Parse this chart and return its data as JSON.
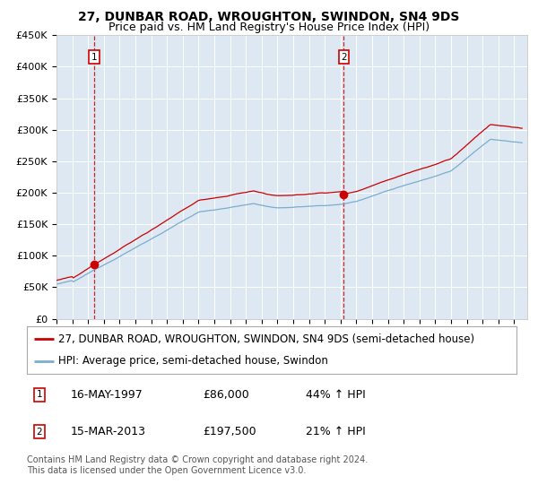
{
  "title": "27, DUNBAR ROAD, WROUGHTON, SWINDON, SN4 9DS",
  "subtitle": "Price paid vs. HM Land Registry's House Price Index (HPI)",
  "legend_line1": "27, DUNBAR ROAD, WROUGHTON, SWINDON, SN4 9DS (semi-detached house)",
  "legend_line2": "HPI: Average price, semi-detached house, Swindon",
  "footer": "Contains HM Land Registry data © Crown copyright and database right 2024.\nThis data is licensed under the Open Government Licence v3.0.",
  "annotation1_date": "16-MAY-1997",
  "annotation1_price": "£86,000",
  "annotation1_hpi": "44% ↑ HPI",
  "annotation1_year": 1997.38,
  "annotation1_value": 86000,
  "annotation2_date": "15-MAR-2013",
  "annotation2_price": "£197,500",
  "annotation2_hpi": "21% ↑ HPI",
  "annotation2_year": 2013.21,
  "annotation2_value": 197500,
  "ylim": [
    0,
    450000
  ],
  "yticks": [
    0,
    50000,
    100000,
    150000,
    200000,
    250000,
    300000,
    350000,
    400000,
    450000
  ],
  "ytick_labels": [
    "£0",
    "£50K",
    "£100K",
    "£150K",
    "£200K",
    "£250K",
    "£300K",
    "£350K",
    "£400K",
    "£450K"
  ],
  "red_color": "#cc0000",
  "blue_color": "#7aadce",
  "background_color": "#dde8f3",
  "grid_color": "#ffffff",
  "title_fontsize": 10,
  "subtitle_fontsize": 9,
  "axis_fontsize": 8,
  "legend_fontsize": 8.5,
  "footer_fontsize": 7
}
